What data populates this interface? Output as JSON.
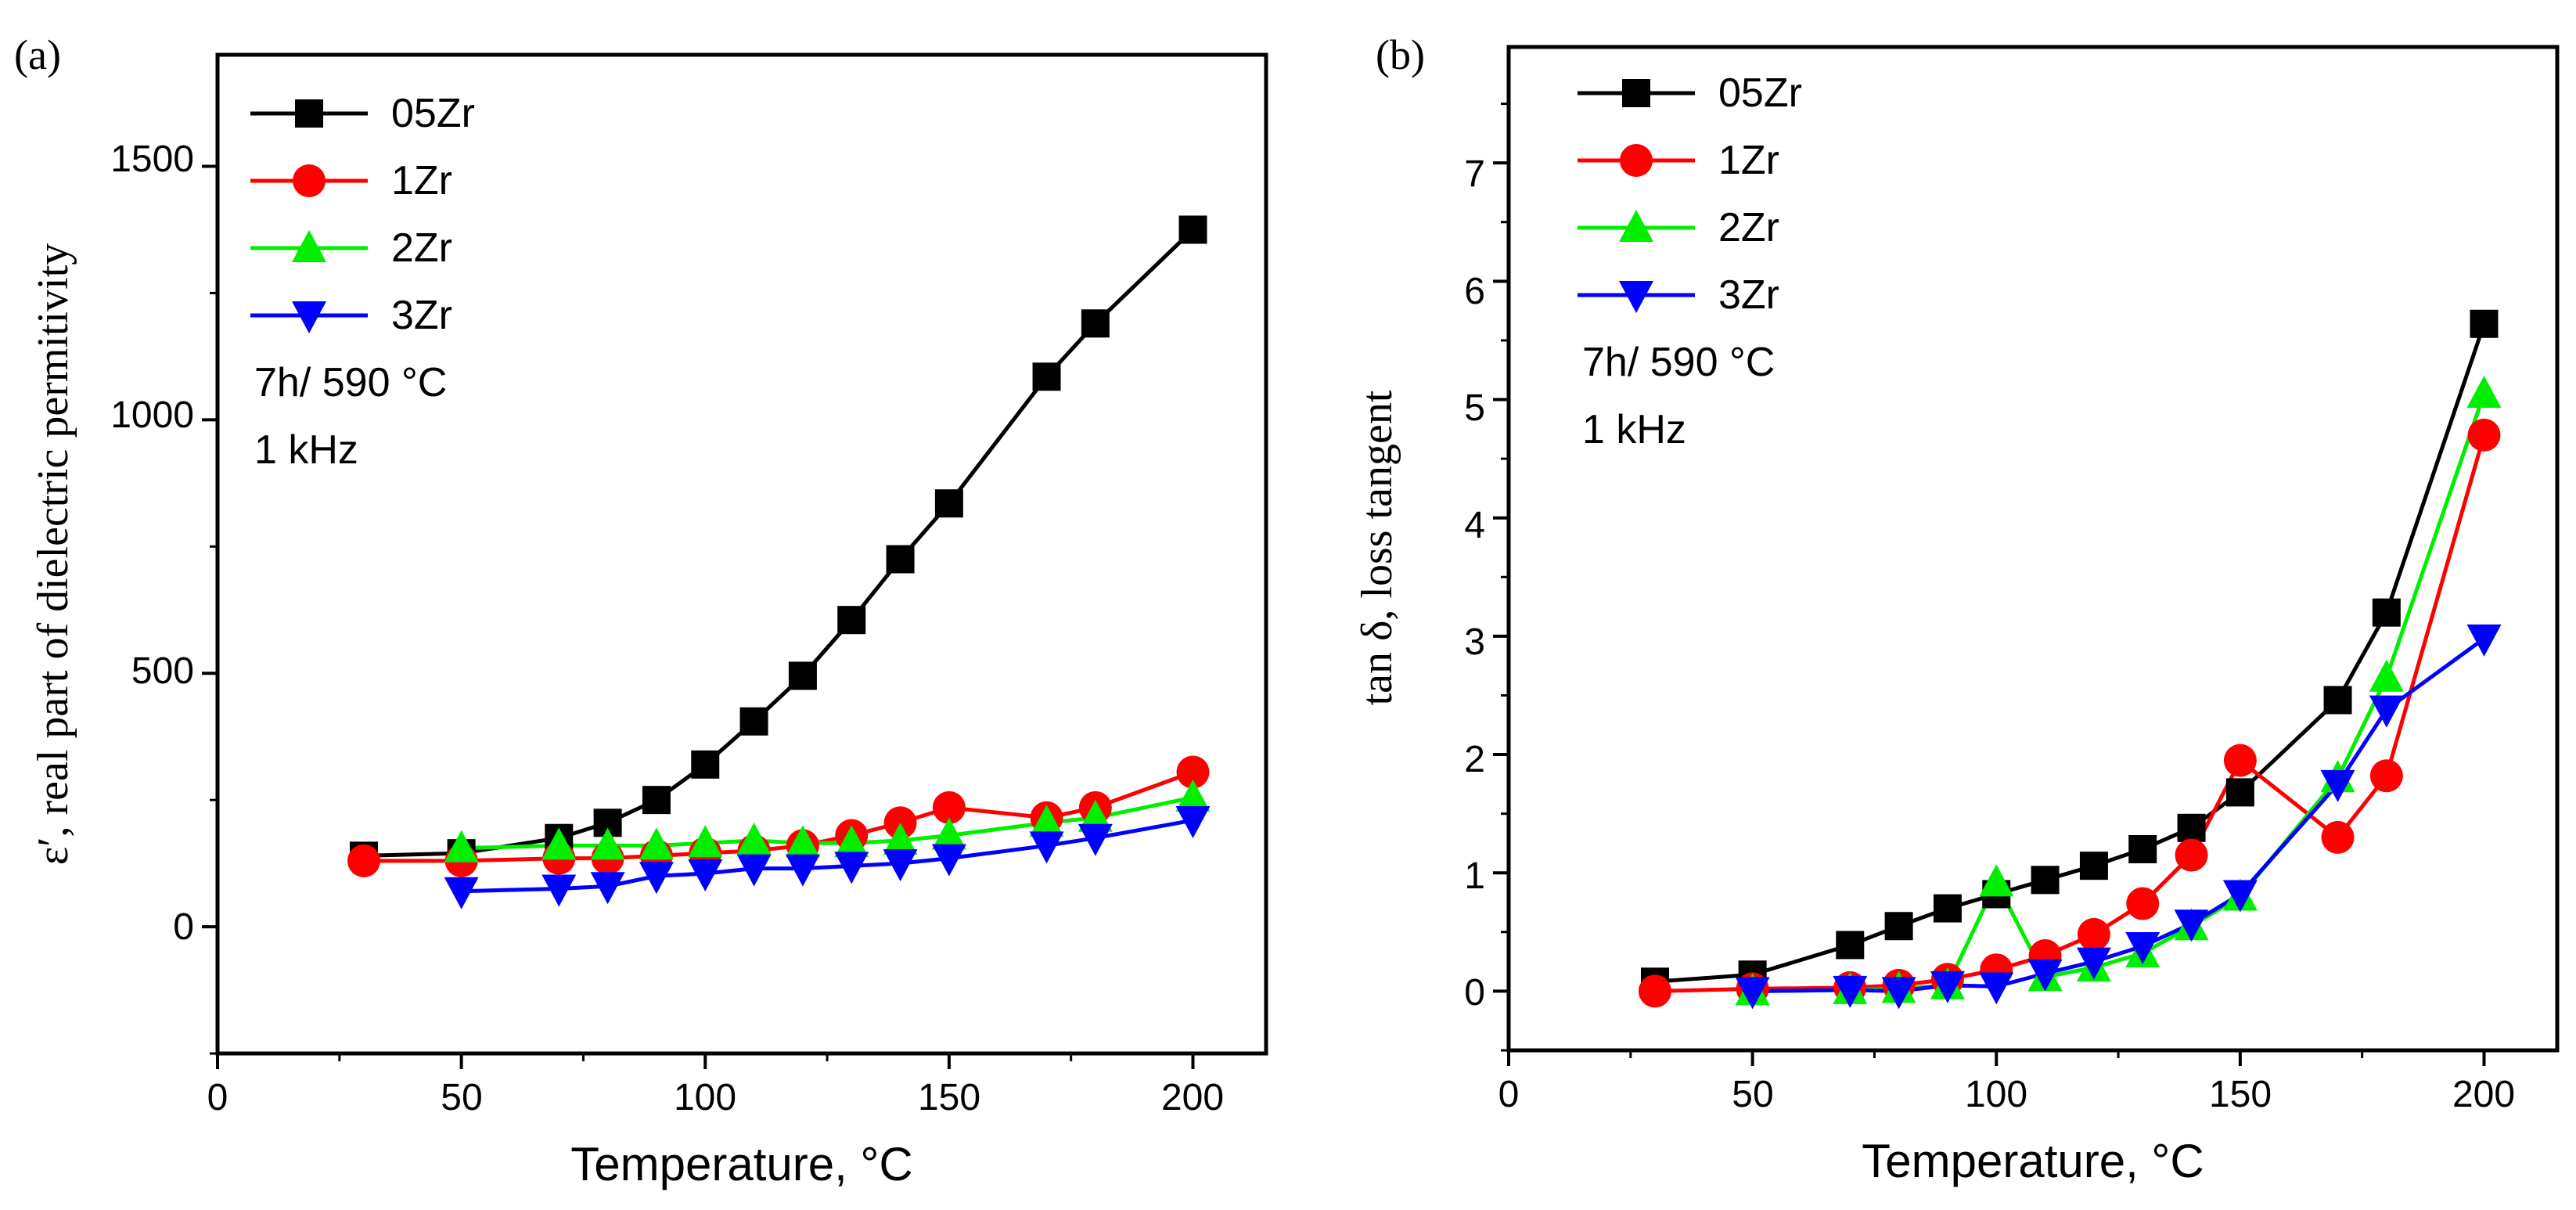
{
  "colors": {
    "05Zr": "#000000",
    "1Zr": "#ff0000",
    "2Zr": "#00ee00",
    "3Zr": "#0000ff"
  },
  "chart_data": [
    {
      "type": "line",
      "panel_label": "(a)",
      "title": "",
      "xlabel": "Temperature, °C",
      "ylabel": "ε′, real part of dielectric permitivity",
      "xlim": [
        0,
        215
      ],
      "ylim": [
        -250,
        1720
      ],
      "xticks": [
        0,
        50,
        100,
        150,
        200
      ],
      "xtick_labels": [
        "0",
        "50",
        "100",
        "150",
        "200"
      ],
      "yticks": [
        0,
        500,
        1000,
        1500
      ],
      "ytick_labels": [
        "0",
        "500",
        "1000",
        "1500"
      ],
      "legend_position": "top-left",
      "annotations": [
        "7h/ 590 °C",
        "1 kHz"
      ],
      "series": [
        {
          "name": "05Zr",
          "marker": "square",
          "x": [
            30,
            50,
            70,
            80,
            90,
            100,
            110,
            120,
            130,
            140,
            150,
            170,
            180,
            200
          ],
          "y": [
            140,
            145,
            175,
            205,
            250,
            320,
            405,
            495,
            605,
            725,
            835,
            1085,
            1190,
            1375
          ]
        },
        {
          "name": "1Zr",
          "marker": "circle",
          "x": [
            30,
            50,
            70,
            80,
            90,
            100,
            110,
            120,
            130,
            140,
            150,
            170,
            180,
            200
          ],
          "y": [
            130,
            130,
            135,
            135,
            140,
            145,
            150,
            160,
            180,
            205,
            235,
            215,
            235,
            305
          ]
        },
        {
          "name": "2Zr",
          "marker": "triangle-up",
          "x": [
            50,
            70,
            80,
            90,
            100,
            110,
            120,
            130,
            140,
            150,
            170,
            180,
            200
          ],
          "y": [
            155,
            160,
            160,
            160,
            165,
            170,
            165,
            165,
            170,
            180,
            205,
            215,
            255
          ]
        },
        {
          "name": "3Zr",
          "marker": "triangle-down",
          "x": [
            50,
            70,
            80,
            90,
            100,
            110,
            120,
            130,
            140,
            150,
            170,
            180,
            200
          ],
          "y": [
            70,
            75,
            80,
            100,
            105,
            115,
            115,
            120,
            125,
            135,
            160,
            175,
            210
          ]
        }
      ]
    },
    {
      "type": "line",
      "panel_label": "(b)",
      "title": "",
      "xlabel": "Temperature, °C",
      "ylabel": "tan δ, loss tangent",
      "xlim": [
        0,
        215
      ],
      "ylim": [
        -0.5,
        7.98
      ],
      "xticks": [
        0,
        50,
        100,
        150,
        200
      ],
      "xtick_labels": [
        "0",
        "50",
        "100",
        "150",
        "200"
      ],
      "yticks": [
        0,
        1,
        2,
        3,
        4,
        5,
        6,
        7
      ],
      "ytick_labels": [
        "0",
        "1",
        "2",
        "3",
        "4",
        "5",
        "6",
        "7"
      ],
      "legend_position": "top-left",
      "annotations": [
        "7h/ 590 °C",
        "1 kHz"
      ],
      "series": [
        {
          "name": "05Zr",
          "marker": "square",
          "x": [
            30,
            50,
            70,
            80,
            90,
            100,
            110,
            120,
            130,
            140,
            150,
            170,
            180,
            200
          ],
          "y": [
            0.08,
            0.14,
            0.39,
            0.55,
            0.7,
            0.82,
            0.94,
            1.06,
            1.2,
            1.38,
            1.68,
            2.46,
            3.2,
            5.64
          ]
        },
        {
          "name": "1Zr",
          "marker": "circle",
          "x": [
            30,
            50,
            70,
            80,
            90,
            100,
            110,
            120,
            130,
            140,
            150,
            170,
            180,
            200
          ],
          "y": [
            0.0,
            0.02,
            0.03,
            0.05,
            0.1,
            0.18,
            0.3,
            0.48,
            0.74,
            1.15,
            1.95,
            1.3,
            1.82,
            4.7
          ]
        },
        {
          "name": "2Zr",
          "marker": "triangle-up",
          "x": [
            50,
            70,
            80,
            90,
            100,
            110,
            120,
            130,
            140,
            150,
            170,
            180,
            200
          ],
          "y": [
            0.0,
            0.01,
            0.02,
            0.05,
            0.92,
            0.12,
            0.2,
            0.32,
            0.55,
            0.8,
            1.8,
            2.65,
            5.05
          ]
        },
        {
          "name": "3Zr",
          "marker": "triangle-down",
          "x": [
            50,
            70,
            80,
            90,
            100,
            110,
            120,
            130,
            140,
            150,
            170,
            180,
            200
          ],
          "y": [
            0.0,
            0.01,
            0.0,
            0.05,
            0.04,
            0.15,
            0.25,
            0.38,
            0.57,
            0.82,
            1.75,
            2.38,
            2.98
          ]
        }
      ]
    }
  ]
}
